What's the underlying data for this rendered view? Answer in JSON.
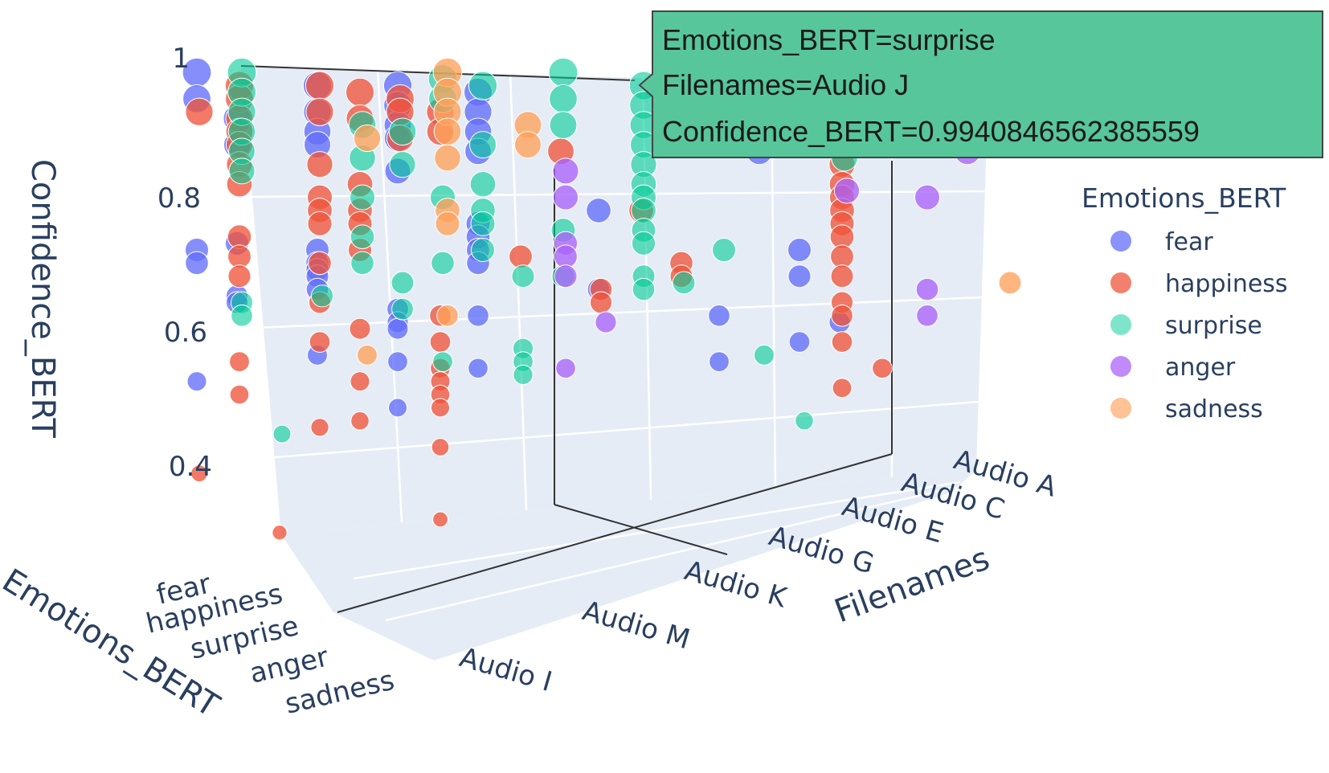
{
  "chart_data": {
    "type": "scatter3d",
    "x_title": "Filenames",
    "y_title": "Emotions_BERT",
    "z_title": "Confidence_BERT",
    "z_ticks": [
      "1",
      "0.8",
      "0.6",
      "0.4"
    ],
    "filename_ticks": [
      "Audio A",
      "Audio C",
      "Audio E",
      "Audio G",
      "Audio K",
      "Audio M",
      "Audio I"
    ],
    "emotion_ticks": [
      "fear",
      "happiness",
      "surprise",
      "anger",
      "sadness"
    ],
    "legend": {
      "title": "Emotions_BERT",
      "placement": "right",
      "items": [
        {
          "label": "fear",
          "color": "#636efa"
        },
        {
          "label": "happiness",
          "color": "#ef553b"
        },
        {
          "label": "surprise",
          "color": "#00cc96"
        },
        {
          "label": "anger",
          "color": "#ab63fa"
        },
        {
          "label": "sadness",
          "color": "#ffa15a"
        }
      ]
    },
    "hover": {
      "line1": "Emotions_BERT=surprise",
      "line2": "Filenames=Audio J",
      "line3": "Confidence_BERT=0.9940846562385559",
      "color": "#57c69b"
    },
    "scene_background": "#e5ecf6",
    "points": {
      "fear": [
        [
          -2,
          0.99
        ],
        [
          -2,
          0.95
        ],
        [
          -2,
          0.72
        ],
        [
          -2,
          0.7
        ],
        [
          -2,
          0.52
        ],
        [
          -1,
          0.92
        ],
        [
          -1,
          0.88
        ],
        [
          -1,
          0.73
        ],
        [
          -1,
          0.65
        ],
        [
          -1,
          0.64
        ],
        [
          1,
          0.97
        ],
        [
          1,
          0.93
        ],
        [
          1,
          0.9
        ],
        [
          1,
          0.88
        ],
        [
          1,
          0.72
        ],
        [
          1,
          0.7
        ],
        [
          1,
          0.69
        ],
        [
          1,
          0.68
        ],
        [
          1,
          0.66
        ],
        [
          1,
          0.56
        ],
        [
          3,
          0.97
        ],
        [
          3,
          0.94
        ],
        [
          3,
          0.91
        ],
        [
          3,
          0.89
        ],
        [
          3,
          0.84
        ],
        [
          3,
          0.63
        ],
        [
          3,
          0.61
        ],
        [
          3,
          0.6
        ],
        [
          3,
          0.55
        ],
        [
          3,
          0.48
        ],
        [
          5,
          0.96
        ],
        [
          5,
          0.93
        ],
        [
          5,
          0.9
        ],
        [
          5,
          0.87
        ],
        [
          5,
          0.76
        ],
        [
          5,
          0.74
        ],
        [
          5,
          0.72
        ],
        [
          5,
          0.7
        ],
        [
          5,
          0.62
        ],
        [
          5,
          0.54
        ],
        [
          8,
          0.78
        ],
        [
          8,
          0.66
        ],
        [
          11,
          0.62
        ],
        [
          11,
          0.55
        ],
        [
          12,
          0.9
        ],
        [
          12,
          0.87
        ],
        [
          13,
          0.72
        ],
        [
          13,
          0.68
        ],
        [
          13,
          0.58
        ],
        [
          14,
          0.92
        ],
        [
          14,
          0.88
        ],
        [
          14,
          0.61
        ]
      ],
      "happiness": [
        [
          -2,
          0.93
        ],
        [
          -2,
          0.38
        ],
        [
          -1,
          0.97
        ],
        [
          -1,
          0.95
        ],
        [
          -1,
          0.92
        ],
        [
          -1,
          0.9
        ],
        [
          -1,
          0.88
        ],
        [
          -1,
          0.85
        ],
        [
          -1,
          0.82
        ],
        [
          -1,
          0.74
        ],
        [
          -1,
          0.71
        ],
        [
          -1,
          0.68
        ],
        [
          -1,
          0.55
        ],
        [
          -1,
          0.5
        ],
        [
          0,
          0.29
        ],
        [
          1,
          0.97
        ],
        [
          1,
          0.93
        ],
        [
          1,
          0.85
        ],
        [
          1,
          0.8
        ],
        [
          1,
          0.78
        ],
        [
          1,
          0.76
        ],
        [
          1,
          0.7
        ],
        [
          1,
          0.64
        ],
        [
          1,
          0.58
        ],
        [
          1,
          0.45
        ],
        [
          2,
          0.96
        ],
        [
          2,
          0.92
        ],
        [
          2,
          0.82
        ],
        [
          2,
          0.78
        ],
        [
          2,
          0.76
        ],
        [
          2,
          0.72
        ],
        [
          2,
          0.6
        ],
        [
          2,
          0.52
        ],
        [
          2,
          0.46
        ],
        [
          3,
          0.95
        ],
        [
          3,
          0.93
        ],
        [
          3,
          0.89
        ],
        [
          4,
          0.93
        ],
        [
          4,
          0.9
        ],
        [
          4,
          0.62
        ],
        [
          4,
          0.58
        ],
        [
          4,
          0.54
        ],
        [
          4,
          0.52
        ],
        [
          4,
          0.5
        ],
        [
          4,
          0.48
        ],
        [
          4,
          0.42
        ],
        [
          4,
          0.31
        ],
        [
          6,
          0.71
        ],
        [
          7,
          0.87
        ],
        [
          8,
          0.66
        ],
        [
          8,
          0.64
        ],
        [
          9,
          0.78
        ],
        [
          10,
          0.7
        ],
        [
          10,
          0.68
        ],
        [
          14,
          0.88
        ],
        [
          14,
          0.85
        ],
        [
          14,
          0.82
        ],
        [
          14,
          0.8
        ],
        [
          14,
          0.78
        ],
        [
          14,
          0.76
        ],
        [
          14,
          0.74
        ],
        [
          14,
          0.71
        ],
        [
          14,
          0.68
        ],
        [
          14,
          0.64
        ],
        [
          14,
          0.62
        ],
        [
          14,
          0.58
        ],
        [
          14,
          0.51
        ],
        [
          15,
          0.54
        ]
      ],
      "surprise": [
        [
          -1,
          0.99
        ],
        [
          -1,
          0.96
        ],
        [
          -1,
          0.93
        ],
        [
          -1,
          0.9
        ],
        [
          -1,
          0.87
        ],
        [
          -1,
          0.84
        ],
        [
          -1,
          0.64
        ],
        [
          -1,
          0.62
        ],
        [
          0,
          0.44
        ],
        [
          1,
          0.65
        ],
        [
          2,
          0.91
        ],
        [
          2,
          0.86
        ],
        [
          2,
          0.8
        ],
        [
          2,
          0.74
        ],
        [
          2,
          0.7
        ],
        [
          3,
          0.9
        ],
        [
          3,
          0.85
        ],
        [
          3,
          0.67
        ],
        [
          3,
          0.63
        ],
        [
          4,
          0.98
        ],
        [
          4,
          0.95
        ],
        [
          4,
          0.8
        ],
        [
          4,
          0.7
        ],
        [
          4,
          0.55
        ],
        [
          5,
          0.97
        ],
        [
          5,
          0.88
        ],
        [
          5,
          0.82
        ],
        [
          5,
          0.78
        ],
        [
          5,
          0.76
        ],
        [
          5,
          0.72
        ],
        [
          6,
          0.68
        ],
        [
          6,
          0.57
        ],
        [
          6,
          0.55
        ],
        [
          6,
          0.53
        ],
        [
          7,
          0.99
        ],
        [
          7,
          0.95
        ],
        [
          7,
          0.91
        ],
        [
          7,
          0.75
        ],
        [
          7,
          0.68
        ],
        [
          9,
          0.97
        ],
        [
          9,
          0.94
        ],
        [
          9,
          0.91
        ],
        [
          9,
          0.88
        ],
        [
          9,
          0.85
        ],
        [
          9,
          0.82
        ],
        [
          9,
          0.8
        ],
        [
          9,
          0.78
        ],
        [
          9,
          0.75
        ],
        [
          9,
          0.73
        ],
        [
          9,
          0.68
        ],
        [
          9,
          0.66
        ],
        [
          10,
          0.67
        ],
        [
          11,
          0.72
        ],
        [
          12,
          0.56
        ],
        [
          13,
          0.46
        ],
        [
          14,
          0.86
        ]
      ],
      "anger": [
        [
          7,
          0.84
        ],
        [
          7,
          0.8
        ],
        [
          7,
          0.73
        ],
        [
          7,
          0.71
        ],
        [
          7,
          0.68
        ],
        [
          7,
          0.54
        ],
        [
          8,
          0.61
        ],
        [
          14,
          0.81
        ],
        [
          16,
          0.8
        ],
        [
          16,
          0.66
        ],
        [
          16,
          0.62
        ],
        [
          17,
          0.87
        ]
      ],
      "sadness": [
        [
          4,
          0.99
        ],
        [
          4,
          0.96
        ],
        [
          4,
          0.93
        ],
        [
          4,
          0.9
        ],
        [
          4,
          0.86
        ],
        [
          4,
          0.78
        ],
        [
          4,
          0.76
        ],
        [
          4,
          0.62
        ],
        [
          2,
          0.89
        ],
        [
          2,
          0.56
        ],
        [
          6,
          0.91
        ],
        [
          6,
          0.88
        ],
        [
          18,
          0.67
        ]
      ]
    }
  }
}
